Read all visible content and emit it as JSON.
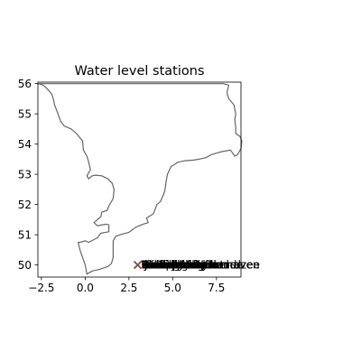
{
  "chart_data": {
    "type": "scatter",
    "title": "Water level stations",
    "xlabel": "",
    "ylabel": "",
    "xlim": [
      -2.7,
      8.9
    ],
    "ylim": [
      49.6,
      56.05
    ],
    "grid": false,
    "x_ticks": [
      -2.5,
      0.0,
      2.5,
      5.0,
      7.5
    ],
    "x_tick_labels": [
      "−2.5",
      "0.0",
      "2.5",
      "5.0",
      "7.5"
    ],
    "y_ticks": [
      50,
      51,
      52,
      53,
      54,
      55,
      56
    ],
    "y_tick_labels": [
      "50",
      "51",
      "52",
      "53",
      "54",
      "55",
      "56"
    ],
    "colors": {
      "coastline": "#666666",
      "marker": "#8c564b",
      "text": "#000000",
      "axes": "#000000"
    },
    "coastline": [
      [
        -2.7,
        56.0
      ],
      [
        -2.4,
        55.95
      ],
      [
        -2.2,
        55.85
      ],
      [
        -1.9,
        55.65
      ],
      [
        -1.8,
        55.45
      ],
      [
        -1.75,
        55.3
      ],
      [
        -1.55,
        55.0
      ],
      [
        -1.4,
        54.75
      ],
      [
        -1.2,
        54.6
      ],
      [
        -0.8,
        54.5
      ],
      [
        -0.5,
        54.35
      ],
      [
        -0.15,
        54.1
      ],
      [
        -0.1,
        53.8
      ],
      [
        0.1,
        53.6
      ],
      [
        0.2,
        53.4
      ],
      [
        0.3,
        53.15
      ],
      [
        0.1,
        52.95
      ],
      [
        0.2,
        52.85
      ],
      [
        0.4,
        52.95
      ],
      [
        0.6,
        52.97
      ],
      [
        0.95,
        52.95
      ],
      [
        1.3,
        52.85
      ],
      [
        1.55,
        52.7
      ],
      [
        1.65,
        52.5
      ],
      [
        1.6,
        52.2
      ],
      [
        1.35,
        51.95
      ],
      [
        1.25,
        51.8
      ],
      [
        0.95,
        51.75
      ],
      [
        0.9,
        51.6
      ],
      [
        0.7,
        51.5
      ],
      [
        0.5,
        51.4
      ],
      [
        0.7,
        51.3
      ],
      [
        1.2,
        51.35
      ],
      [
        1.35,
        51.33
      ],
      [
        1.35,
        51.1
      ],
      [
        0.9,
        51.05
      ],
      [
        0.7,
        50.9
      ],
      [
        0.2,
        50.75
      ],
      [
        0.0,
        50.8
      ],
      [
        -0.3,
        50.75
      ],
      [
        -0.4,
        50.75
      ],
      [
        -0.3,
        50.5
      ],
      [
        0.0,
        50.0
      ],
      [
        0.1,
        49.7
      ],
      [
        0.4,
        49.8
      ],
      [
        0.8,
        49.85
      ],
      [
        1.3,
        49.95
      ],
      [
        1.5,
        50.05
      ],
      [
        1.6,
        50.25
      ],
      [
        1.6,
        50.8
      ],
      [
        1.75,
        50.95
      ],
      [
        2.1,
        51.02
      ],
      [
        2.5,
        51.08
      ],
      [
        2.9,
        51.25
      ],
      [
        3.3,
        51.35
      ],
      [
        3.6,
        51.4
      ],
      [
        3.5,
        51.55
      ],
      [
        3.9,
        51.7
      ],
      [
        4.0,
        51.85
      ],
      [
        4.1,
        52.0
      ],
      [
        4.3,
        52.1
      ],
      [
        4.45,
        52.3
      ],
      [
        4.55,
        52.45
      ],
      [
        4.62,
        52.75
      ],
      [
        4.7,
        53.0
      ],
      [
        4.9,
        53.25
      ],
      [
        5.3,
        53.4
      ],
      [
        5.7,
        53.45
      ],
      [
        6.2,
        53.47
      ],
      [
        6.5,
        53.5
      ],
      [
        6.9,
        53.55
      ],
      [
        7.2,
        53.65
      ],
      [
        7.5,
        53.7
      ],
      [
        7.8,
        53.75
      ],
      [
        8.3,
        53.8
      ],
      [
        8.55,
        53.6
      ],
      [
        8.7,
        53.65
      ],
      [
        8.9,
        53.85
      ],
      [
        8.95,
        54.1
      ],
      [
        8.85,
        54.25
      ],
      [
        8.6,
        54.35
      ],
      [
        8.6,
        54.55
      ],
      [
        8.55,
        54.8
      ],
      [
        8.6,
        55.0
      ],
      [
        8.5,
        55.3
      ],
      [
        8.2,
        55.5
      ],
      [
        8.1,
        55.7
      ],
      [
        8.2,
        55.95
      ],
      [
        7.9,
        56.0
      ],
      [
        -2.7,
        56.0
      ]
    ],
    "stations_marker": {
      "x": 3.0,
      "y": 50.0,
      "shape": "x"
    },
    "station_labels": [
      {
        "text": "Scheveningen",
        "x": 3.2,
        "y": 50.0
      },
      {
        "text": "Vlissingen",
        "x": 3.2,
        "y": 50.0
      },
      {
        "text": "Europlatform",
        "x": 3.2,
        "y": 50.0
      },
      {
        "text": "Delfzijl",
        "x": 3.2,
        "y": 50.0
      },
      {
        "text": "Harlingen",
        "x": 3.2,
        "y": 50.0
      },
      {
        "text": "Hoek van Holland",
        "x": 3.2,
        "y": 50.0
      },
      {
        "text": "IJmuiden",
        "x": 3.2,
        "y": 50.0
      },
      {
        "text": "Lauwersoog",
        "x": 3.2,
        "y": 50.0
      },
      {
        "text": "Roompot buiten",
        "x": 3.2,
        "y": 50.0
      },
      {
        "text": "Terschelling Noordzee",
        "x": 3.2,
        "y": 50.0
      },
      {
        "text": "Den Helder",
        "x": 3.2,
        "y": 50.0
      },
      {
        "text": "Huibertgat",
        "x": 3.2,
        "y": 50.0
      },
      {
        "text": "K13a platform",
        "x": 3.2,
        "y": 50.0
      },
      {
        "text": "Lichteiland Goeree",
        "x": 3.2,
        "y": 50.0
      },
      {
        "text": "Ijmuiden buitenhaven",
        "x": 3.2,
        "y": 50.0
      },
      {
        "text": "Oosterschelde",
        "x": 3.2,
        "y": 50.0
      },
      {
        "text": "NoordMeetpost",
        "x": 3.2,
        "y": 50.0
      }
    ]
  }
}
